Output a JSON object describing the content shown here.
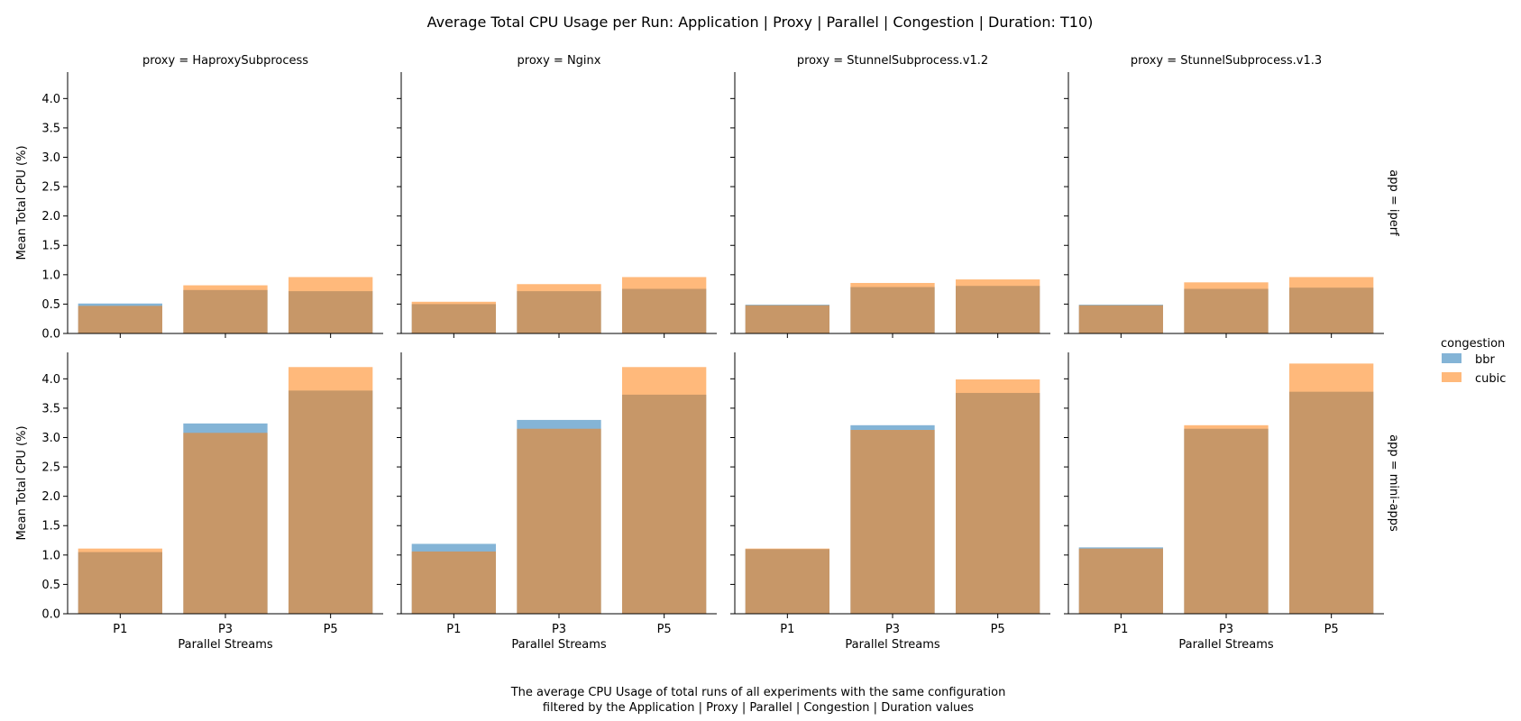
{
  "figure": {
    "title": "Average Total CPU Usage per Run: Application | Proxy | Parallel | Congestion | Duration: T10)",
    "caption_lines": [
      "The average CPU Usage of total runs of all experiments with the same configuration",
      "filtered by the Application | Proxy | Parallel | Congestion | Duration values"
    ],
    "legend": {
      "title": "congestion",
      "placement": "right",
      "entries": [
        {
          "label": "bbr",
          "color": "#1f77b4"
        },
        {
          "label": "cubic",
          "color": "#ff7f0e"
        }
      ]
    }
  },
  "chart_data": {
    "type": "bar",
    "overlay": true,
    "bar_opacity": 0.55,
    "xlabel": "Parallel Streams",
    "ylabel": "Mean Total CPU (%)",
    "ylim": [
      0,
      4.45
    ],
    "yticks": [
      "0.0",
      "0.5",
      "1.0",
      "1.5",
      "2.0",
      "2.5",
      "3.0",
      "3.5",
      "4.0"
    ],
    "grid": false,
    "categories": [
      "P1",
      "P3",
      "P5"
    ],
    "column_labels": [
      "proxy = HaproxySubprocess",
      "proxy = Nginx",
      "proxy = StunnelSubprocess.v1.2",
      "proxy = StunnelSubprocess.v1.3"
    ],
    "row_labels": [
      "app = iperf",
      "app = mini-apps"
    ],
    "series_names": [
      "bbr",
      "cubic"
    ],
    "series_colors": [
      "#1f77b4",
      "#ff7f0e"
    ],
    "panels": [
      [
        {
          "bbr": [
            0.51,
            0.74,
            0.72
          ],
          "cubic": [
            0.47,
            0.82,
            0.96
          ]
        },
        {
          "bbr": [
            0.5,
            0.72,
            0.76
          ],
          "cubic": [
            0.54,
            0.84,
            0.96
          ]
        },
        {
          "bbr": [
            0.49,
            0.79,
            0.81
          ],
          "cubic": [
            0.48,
            0.86,
            0.92
          ]
        },
        {
          "bbr": [
            0.49,
            0.76,
            0.78
          ],
          "cubic": [
            0.48,
            0.87,
            0.96
          ]
        }
      ],
      [
        {
          "bbr": [
            1.05,
            3.24,
            3.8
          ],
          "cubic": [
            1.11,
            3.08,
            4.2
          ]
        },
        {
          "bbr": [
            1.19,
            3.3,
            3.73
          ],
          "cubic": [
            1.06,
            3.15,
            4.2
          ]
        },
        {
          "bbr": [
            1.1,
            3.21,
            3.76
          ],
          "cubic": [
            1.11,
            3.13,
            3.99
          ]
        },
        {
          "bbr": [
            1.13,
            3.15,
            3.78
          ],
          "cubic": [
            1.11,
            3.21,
            4.26
          ]
        }
      ]
    ]
  }
}
